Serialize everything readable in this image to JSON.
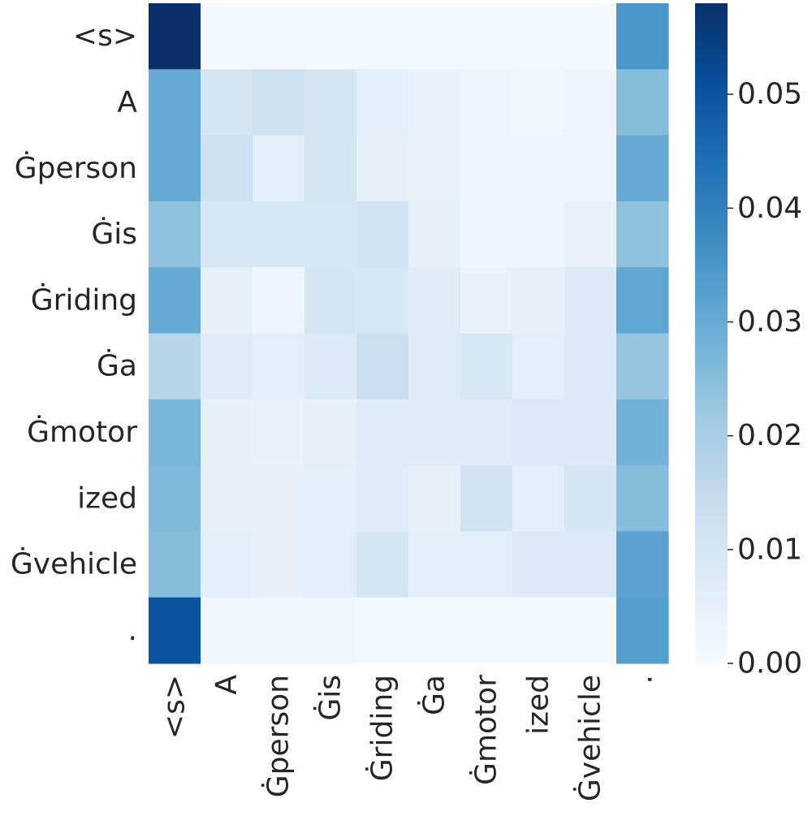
{
  "chart_data": {
    "type": "heatmap",
    "title": "",
    "xlabel": "",
    "ylabel": "",
    "x_tokens": [
      "<s>",
      "A",
      "Ġperson",
      "Ġis",
      "Ġriding",
      "Ġa",
      "Ġmotor",
      "ized",
      "Ġvehicle",
      "."
    ],
    "y_tokens": [
      "<s>",
      "A",
      "Ġperson",
      "Ġis",
      "Ġriding",
      "Ġa",
      "Ġmotor",
      "ized",
      "Ġvehicle",
      "."
    ],
    "values": [
      [
        0.058,
        0.001,
        0.001,
        0.001,
        0.001,
        0.001,
        0.001,
        0.001,
        0.001,
        0.035
      ],
      [
        0.03,
        0.01,
        0.012,
        0.01,
        0.006,
        0.004,
        0.003,
        0.002,
        0.003,
        0.025
      ],
      [
        0.03,
        0.012,
        0.006,
        0.01,
        0.005,
        0.004,
        0.003,
        0.003,
        0.003,
        0.03
      ],
      [
        0.024,
        0.009,
        0.009,
        0.009,
        0.011,
        0.005,
        0.003,
        0.003,
        0.004,
        0.024
      ],
      [
        0.03,
        0.005,
        0.003,
        0.01,
        0.009,
        0.007,
        0.004,
        0.005,
        0.008,
        0.031
      ],
      [
        0.017,
        0.007,
        0.006,
        0.008,
        0.013,
        0.007,
        0.009,
        0.006,
        0.008,
        0.023
      ],
      [
        0.027,
        0.005,
        0.004,
        0.005,
        0.007,
        0.007,
        0.007,
        0.008,
        0.008,
        0.028
      ],
      [
        0.026,
        0.005,
        0.005,
        0.006,
        0.007,
        0.005,
        0.011,
        0.006,
        0.01,
        0.025
      ],
      [
        0.025,
        0.006,
        0.005,
        0.006,
        0.01,
        0.006,
        0.006,
        0.008,
        0.008,
        0.032
      ],
      [
        0.05,
        0.002,
        0.002,
        0.002,
        0.001,
        0.001,
        0.001,
        0.001,
        0.001,
        0.033
      ]
    ],
    "colormap": "Blues",
    "vmin": 0.0,
    "vmax": 0.058,
    "colorbar_ticks": [
      0.0,
      0.01,
      0.02,
      0.03,
      0.04,
      0.05
    ],
    "colorbar_tick_labels": [
      "0.00",
      "0.01",
      "0.02",
      "0.03",
      "0.04",
      "0.05"
    ],
    "grid": false,
    "colorbar_position": "right"
  }
}
